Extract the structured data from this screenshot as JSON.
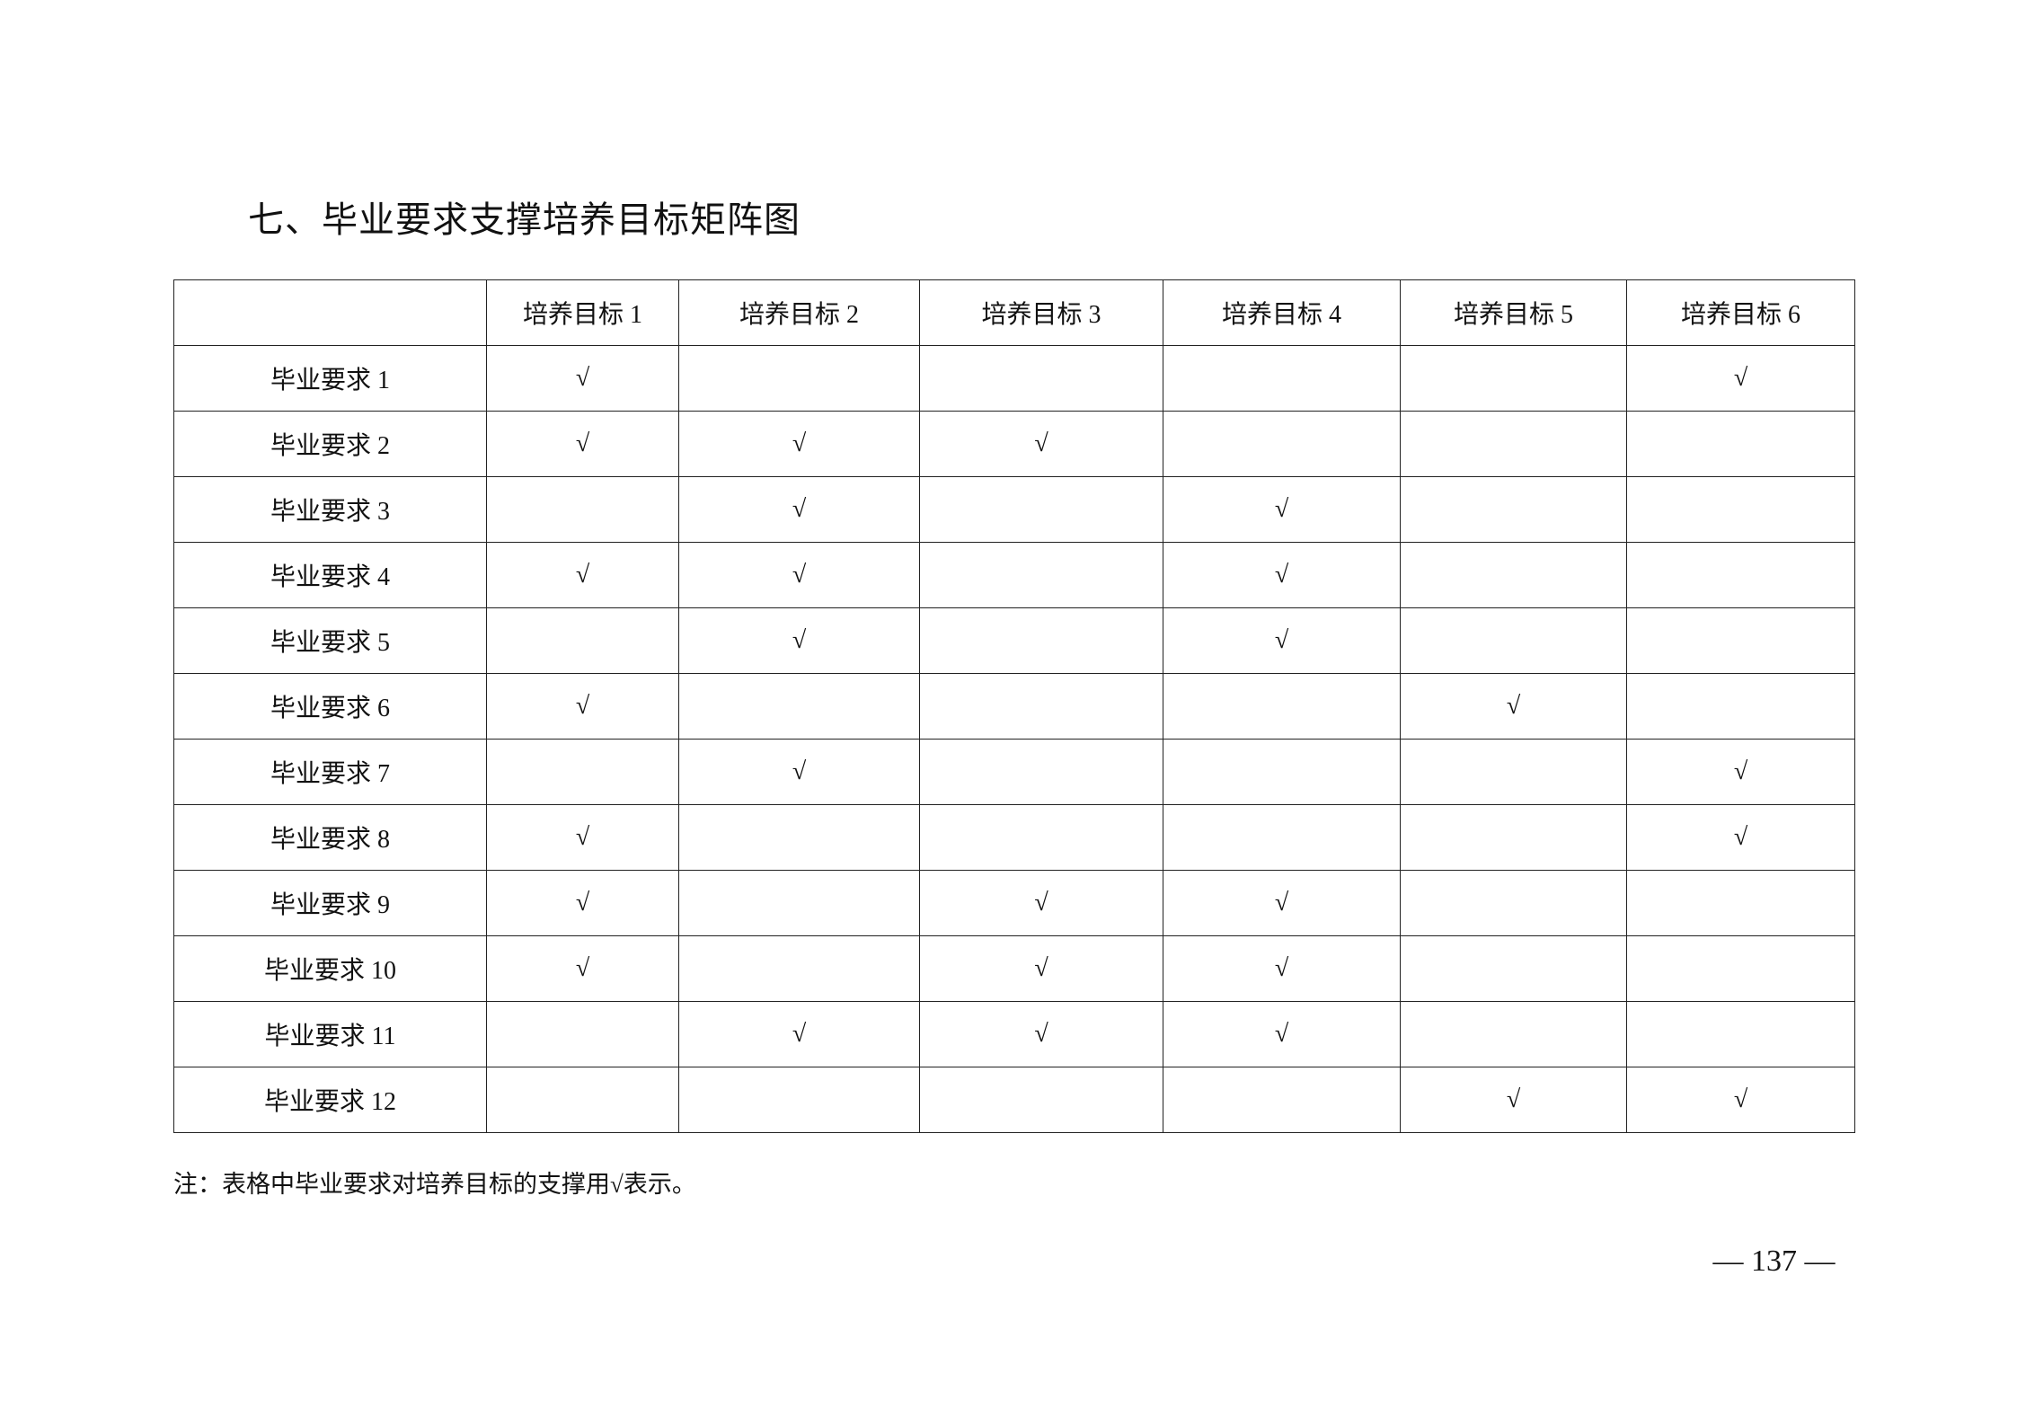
{
  "title": "七、毕业要求支撑培养目标矩阵图",
  "table": {
    "corner": "",
    "columns": [
      "培养目标 1",
      "培养目标 2",
      "培养目标 3",
      "培养目标 4",
      "培养目标 5",
      "培养目标 6"
    ],
    "check_symbol": "√",
    "rows": [
      {
        "label": "毕业要求 1",
        "checks": [
          true,
          false,
          false,
          false,
          false,
          true
        ]
      },
      {
        "label": "毕业要求 2",
        "checks": [
          true,
          true,
          true,
          false,
          false,
          false
        ]
      },
      {
        "label": "毕业要求 3",
        "checks": [
          false,
          true,
          false,
          true,
          false,
          false
        ]
      },
      {
        "label": "毕业要求 4",
        "checks": [
          true,
          true,
          false,
          true,
          false,
          false
        ]
      },
      {
        "label": "毕业要求 5",
        "checks": [
          false,
          true,
          false,
          true,
          false,
          false
        ]
      },
      {
        "label": "毕业要求 6",
        "checks": [
          true,
          false,
          false,
          false,
          true,
          false
        ]
      },
      {
        "label": "毕业要求 7",
        "checks": [
          false,
          true,
          false,
          false,
          false,
          true
        ]
      },
      {
        "label": "毕业要求 8",
        "checks": [
          true,
          false,
          false,
          false,
          false,
          true
        ]
      },
      {
        "label": "毕业要求 9",
        "checks": [
          true,
          false,
          true,
          true,
          false,
          false
        ]
      },
      {
        "label": "毕业要求 10",
        "checks": [
          true,
          false,
          true,
          true,
          false,
          false
        ]
      },
      {
        "label": "毕业要求 11",
        "checks": [
          false,
          true,
          true,
          true,
          false,
          false
        ]
      },
      {
        "label": "毕业要求 12",
        "checks": [
          false,
          false,
          false,
          false,
          true,
          true
        ]
      }
    ]
  },
  "note": "注：表格中毕业要求对培养目标的支撑用√表示。",
  "page_number": "— 137 —"
}
